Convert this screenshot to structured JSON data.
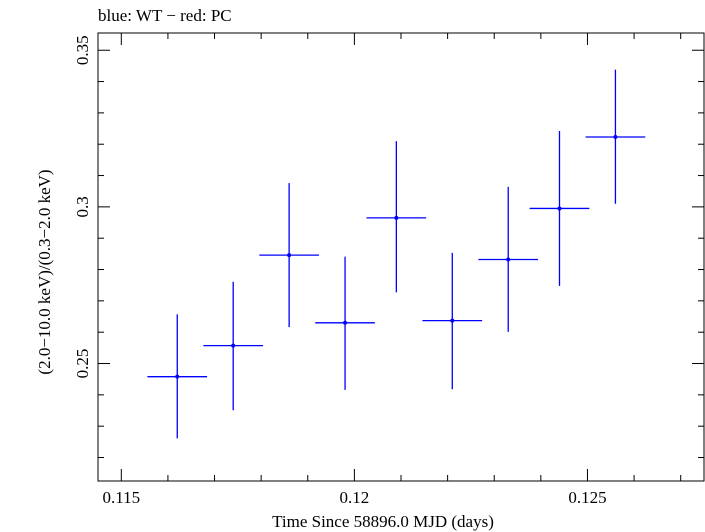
{
  "chart_data": {
    "type": "scatter",
    "title": "blue: WT − red: PC",
    "xlabel": "Time Since 58896.0 MJD (days)",
    "ylabel": "(2.0−10.0 keV)/(0.3−2.0 keV)",
    "xlim": [
      0.1145,
      0.1275
    ],
    "ylim": [
      0.2125,
      0.3555
    ],
    "xticks": [
      0.115,
      0.12,
      0.125
    ],
    "xtick_labels": [
      "0.115",
      "0.12",
      "0.125"
    ],
    "yticks": [
      0.25,
      0.3,
      0.35
    ],
    "ytick_labels": [
      "0.25",
      "0.3",
      "0.35"
    ],
    "grid": false,
    "series": [
      {
        "color": "#0000ff",
        "points": [
          {
            "x": 0.1162,
            "y": 0.2458,
            "xerr": 0.00064,
            "yerr_low": 0.0197,
            "yerr_high": 0.0199
          },
          {
            "x": 0.1174,
            "y": 0.2557,
            "xerr": 0.00064,
            "yerr_low": 0.0206,
            "yerr_high": 0.0204
          },
          {
            "x": 0.1186,
            "y": 0.2846,
            "xerr": 0.00064,
            "yerr_low": 0.023,
            "yerr_high": 0.023
          },
          {
            "x": 0.1198,
            "y": 0.263,
            "xerr": 0.00064,
            "yerr_low": 0.0214,
            "yerr_high": 0.0211
          },
          {
            "x": 0.1209,
            "y": 0.2965,
            "xerr": 0.00064,
            "yerr_low": 0.0238,
            "yerr_high": 0.0245
          },
          {
            "x": 0.1221,
            "y": 0.2637,
            "xerr": 0.00064,
            "yerr_low": 0.0219,
            "yerr_high": 0.0216
          },
          {
            "x": 0.1233,
            "y": 0.2832,
            "xerr": 0.00064,
            "yerr_low": 0.0231,
            "yerr_high": 0.0232
          },
          {
            "x": 0.1244,
            "y": 0.2995,
            "xerr": 0.00064,
            "yerr_low": 0.0247,
            "yerr_high": 0.0247
          },
          {
            "x": 0.1256,
            "y": 0.3223,
            "xerr": 0.00064,
            "yerr_low": 0.0213,
            "yerr_high": 0.0215
          }
        ]
      }
    ]
  }
}
